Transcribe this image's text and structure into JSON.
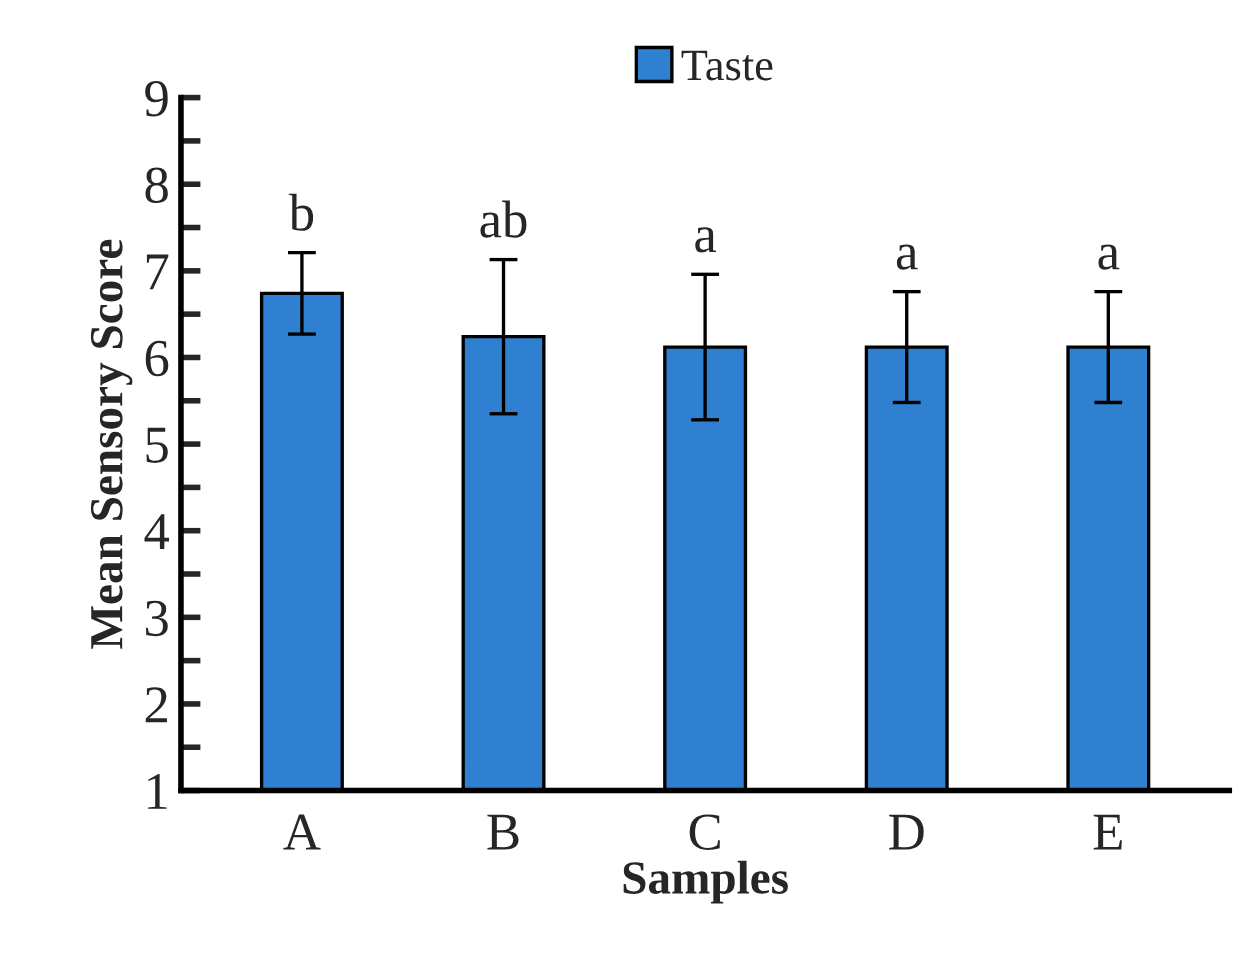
{
  "chart_data": {
    "type": "bar",
    "xlabel": "Samples",
    "ylabel": "Mean Sensory Score",
    "categories": [
      "A",
      "B",
      "C",
      "D",
      "E"
    ],
    "series": [
      {
        "name": "Taste",
        "color": "#2f80d0",
        "values": [
          6.74,
          6.24,
          6.12,
          6.12,
          6.12
        ],
        "errors": [
          0.47,
          0.89,
          0.84,
          0.64,
          0.64
        ]
      }
    ],
    "ylim": [
      1,
      9
    ],
    "yticks": [
      1,
      {
        "value": 1.5,
        "label": null
      },
      2,
      {
        "value": 2.5,
        "label": null
      },
      3,
      {
        "value": 3.5,
        "label": null
      },
      4,
      {
        "value": 4.5,
        "label": null
      },
      5,
      {
        "value": 5.5,
        "label": null
      },
      6,
      {
        "value": 6.5,
        "label": null
      },
      7,
      {
        "value": 7.5,
        "label": null
      },
      8,
      {
        "value": 8.5,
        "label": null
      },
      9
    ],
    "annotations": [
      "b",
      "ab",
      "a",
      "a",
      "a"
    ],
    "legend": "top",
    "grid": false
  }
}
